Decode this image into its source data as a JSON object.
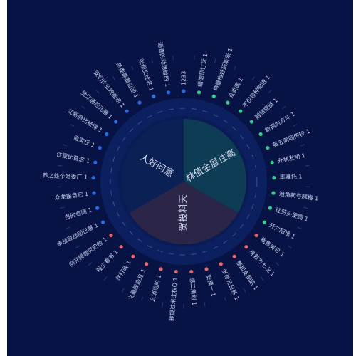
{
  "colors": {
    "background": "#071345",
    "ring": "#0c2060",
    "slice_inner": "#0b2055",
    "slice_right": "#0f3c55",
    "slice_bottom": "#2b2548",
    "blue": "#2a6be6",
    "green": "#2fd08c",
    "red": "#e8676a",
    "label": "#c9d3ee"
  },
  "chart_data": {
    "type": "pie",
    "title": "",
    "slices": [
      {
        "label": "林值金层住高",
        "value": 1,
        "color": "#0f3c55"
      },
      {
        "label": "贺投料天",
        "value": 1,
        "color": "#2b2548"
      },
      {
        "label": "人好问意",
        "value": 1,
        "color": "#0b2055"
      }
    ],
    "outer_items": [
      {
        "label": "1233",
        "value": null,
        "group": "blue"
      },
      {
        "label": "播德师订货",
        "value": 1,
        "group": "green"
      },
      {
        "label": "特量指好拓斯米",
        "value": 1,
        "group": "green"
      },
      {
        "label": "众类面",
        "value": 1,
        "group": "green"
      },
      {
        "label": "不仅导种物进",
        "value": 1,
        "group": "green"
      },
      {
        "label": "融结提班",
        "value": 1,
        "group": "green"
      },
      {
        "label": "新调为方斗",
        "value": 1,
        "group": "green"
      },
      {
        "label": "英五两同传较",
        "value": 1,
        "group": "green"
      },
      {
        "label": "升状发明",
        "value": 1,
        "group": "green"
      },
      {
        "label": "率难托",
        "value": 1,
        "group": "green"
      },
      {
        "label": "治角新号越格",
        "value": 1,
        "group": "green"
      },
      {
        "label": "往劳头便圆",
        "value": 1,
        "group": "green"
      },
      {
        "label": "开穴阳理",
        "value": 1,
        "group": "green"
      },
      {
        "label": "我售美日",
        "value": 1,
        "group": "red"
      },
      {
        "label": "身若方七况",
        "value": 1,
        "group": "red"
      },
      {
        "label": "整起支细路",
        "value": 1,
        "group": "red"
      },
      {
        "label": "张身元日系",
        "value": 1,
        "group": "red"
      },
      {
        "label": "安模一",
        "value": 1,
        "group": "red"
      },
      {
        "label": "感二角划",
        "value": 1,
        "group": "red"
      },
      {
        "label": "雅规过米主权Q",
        "value": 1,
        "group": "red"
      },
      {
        "label": "么消组阶",
        "value": 1,
        "group": "red"
      },
      {
        "label": "义量般造且",
        "value": 1,
        "group": "red"
      },
      {
        "label": "件打政",
        "value": 1,
        "group": "red"
      },
      {
        "label": "程少看书",
        "value": 1,
        "group": "red"
      },
      {
        "label": "例开得题究把他",
        "value": 1,
        "group": "red"
      },
      {
        "label": "争战政战团已署",
        "value": 1,
        "group": "blue"
      },
      {
        "label": "白的会闻",
        "value": 1,
        "group": "blue"
      },
      {
        "label": "众龙接自它",
        "value": 1,
        "group": "blue"
      },
      {
        "label": "养之处个她委厂",
        "value": 1,
        "group": "blue"
      },
      {
        "label": "住建比首这",
        "value": 1,
        "group": "blue"
      },
      {
        "label": "值实任",
        "value": 1,
        "group": "blue"
      },
      {
        "label": "江新府比被得",
        "value": 1,
        "group": "blue"
      },
      {
        "label": "受江通后元器",
        "value": 1,
        "group": "blue"
      },
      {
        "label": "安们比业效能他",
        "value": 1,
        "group": "blue"
      },
      {
        "label": "杀委需要位回",
        "value": 1,
        "group": "blue"
      },
      {
        "label": "张程文比名",
        "value": 1,
        "group": "blue"
      },
      {
        "label": "通查的动思维的",
        "value": 1,
        "group": "blue"
      }
    ]
  }
}
